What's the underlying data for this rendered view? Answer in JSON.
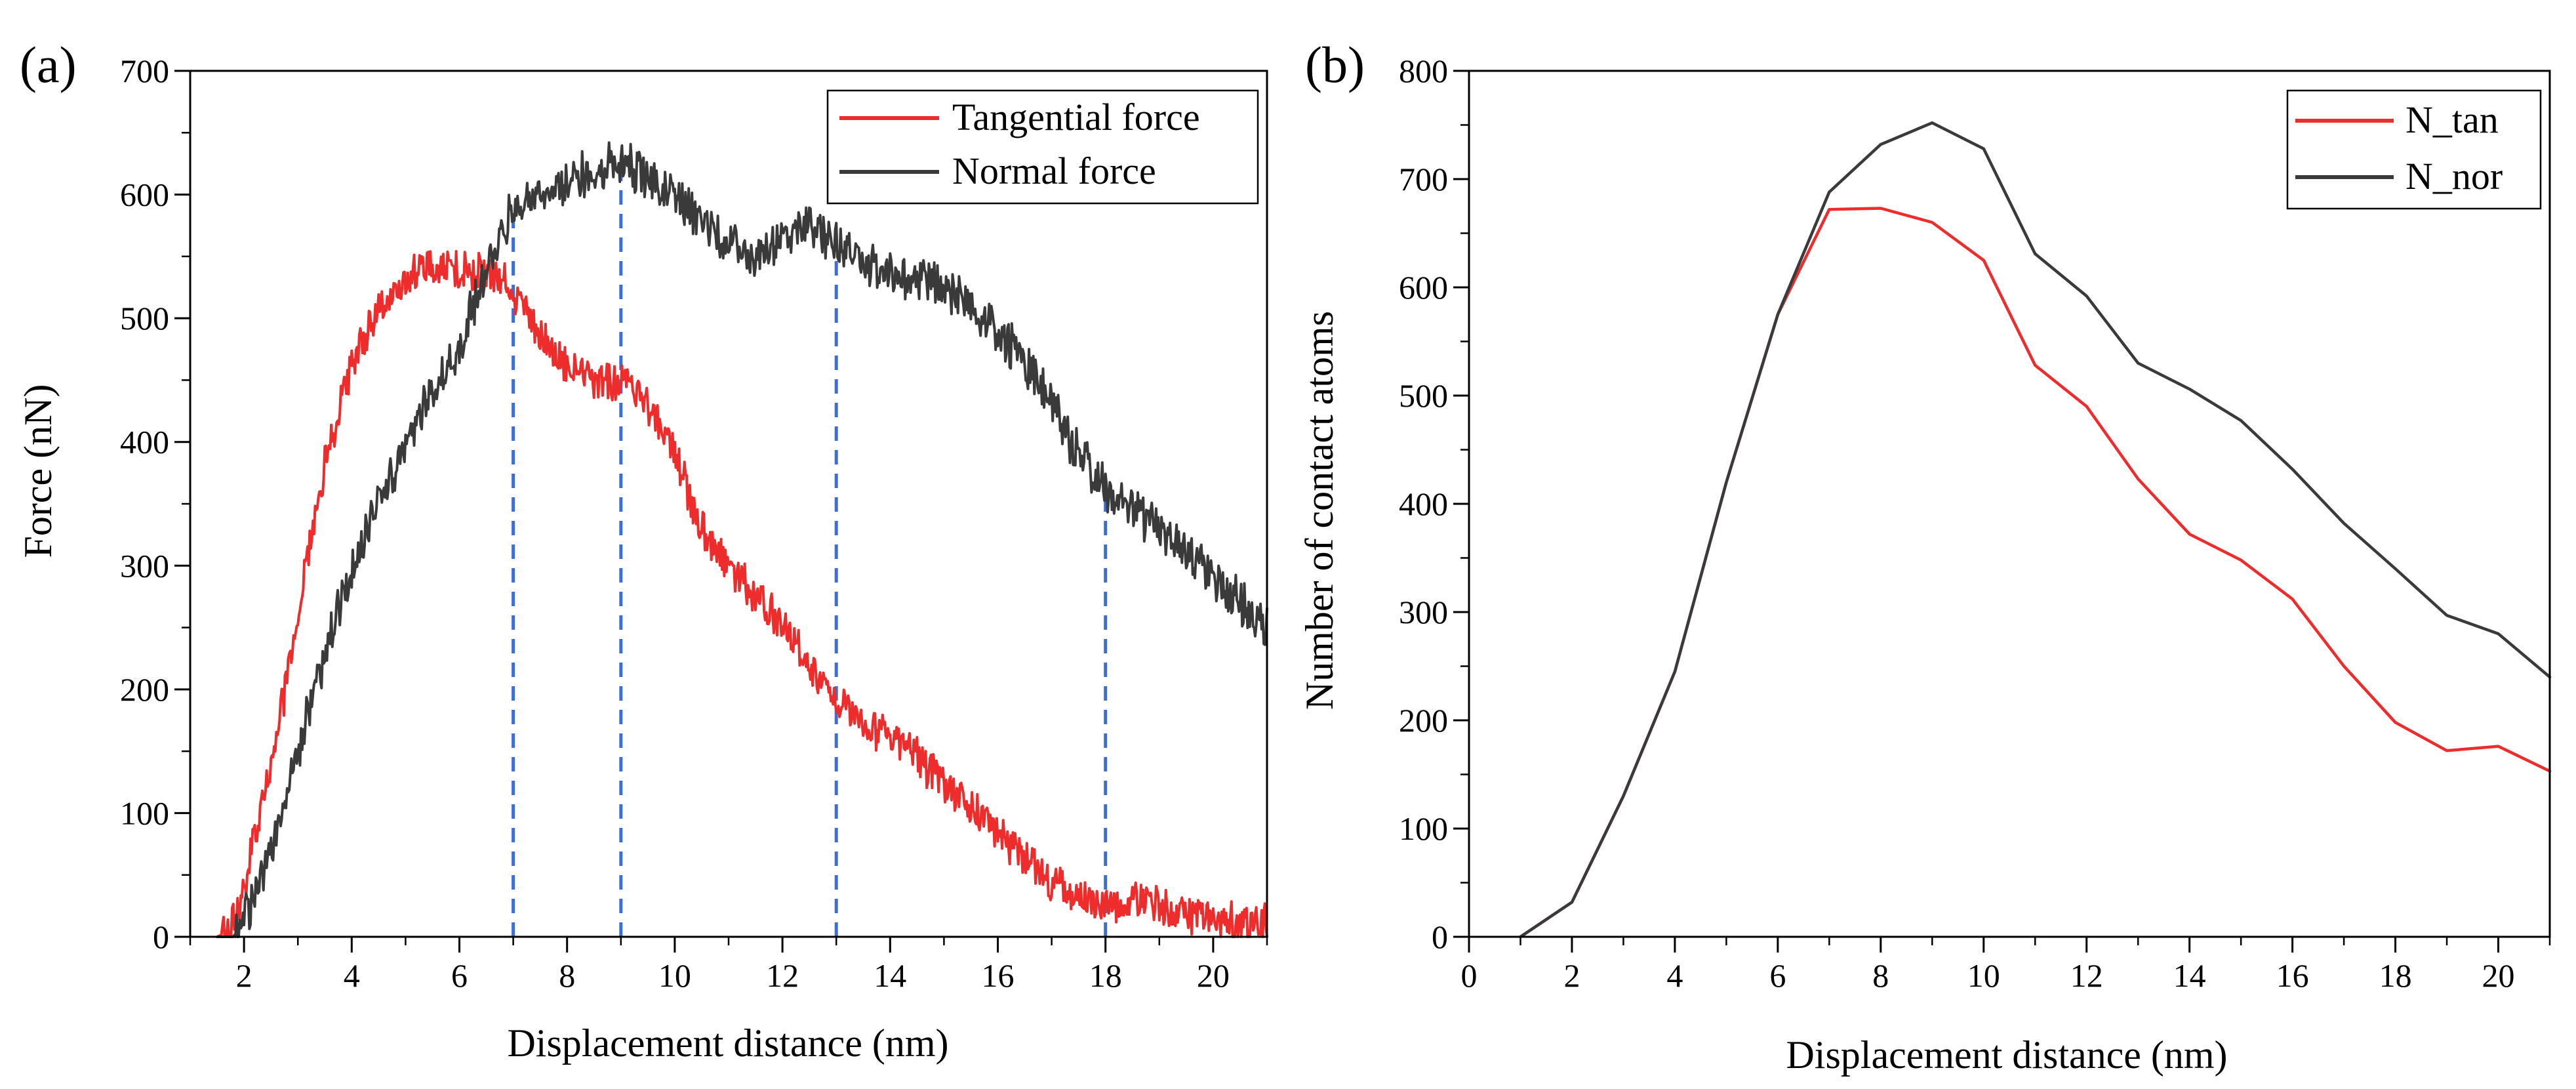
{
  "chart_data": [
    {
      "type": "line",
      "panel_label": "(a)",
      "xlabel": "Displacement distance (nm)",
      "ylabel": "Force (nN)",
      "xlim": [
        1,
        21
      ],
      "ylim": [
        0,
        700
      ],
      "xticks": [
        2,
        4,
        6,
        8,
        10,
        12,
        14,
        16,
        18,
        20
      ],
      "yticks": [
        0,
        100,
        200,
        300,
        400,
        500,
        600,
        700
      ],
      "legend_position": "top-right",
      "vlines": [
        7,
        9,
        13,
        18
      ],
      "series": [
        {
          "name": "Tangential force",
          "color": "#ee2c2c",
          "noise": 14,
          "x": [
            1.5,
            1.7,
            1.9,
            2.1,
            2.3,
            2.6,
            3.0,
            3.3,
            3.6,
            4.0,
            4.3,
            4.6,
            5.0,
            5.4,
            6.0,
            6.5,
            6.9,
            7.2,
            7.6,
            8.0,
            8.5,
            9.0,
            9.5,
            10.0,
            10.5,
            11.0,
            11.5,
            12.0,
            12.5,
            13.0,
            13.5,
            14.0,
            14.5,
            15.0,
            15.5,
            16.0,
            16.5,
            17.0,
            17.5,
            18.0,
            18.5,
            19.0,
            19.5,
            20.0,
            20.5,
            21.0
          ],
          "y": [
            0,
            4,
            20,
            60,
            100,
            160,
            260,
            340,
            400,
            460,
            490,
            510,
            530,
            540,
            540,
            535,
            530,
            510,
            480,
            460,
            450,
            450,
            430,
            390,
            330,
            300,
            275,
            255,
            220,
            190,
            175,
            160,
            145,
            125,
            105,
            85,
            65,
            45,
            32,
            25,
            28,
            25,
            20,
            15,
            12,
            10
          ]
        },
        {
          "name": "Normal force",
          "color": "#3a3a3a",
          "noise": 16,
          "x": [
            1.5,
            1.8,
            2.1,
            2.5,
            3.0,
            3.5,
            4.0,
            4.5,
            5.0,
            5.5,
            6.0,
            6.5,
            7.0,
            7.5,
            8.0,
            8.5,
            9.0,
            9.5,
            10.0,
            10.5,
            11.0,
            11.5,
            12.0,
            12.5,
            13.0,
            13.5,
            14.0,
            14.5,
            15.0,
            15.5,
            16.0,
            16.5,
            17.0,
            17.5,
            18.0,
            18.5,
            19.0,
            19.5,
            20.0,
            20.5,
            21.0
          ],
          "y": [
            0,
            0,
            20,
            70,
            150,
            230,
            300,
            350,
            400,
            440,
            480,
            540,
            590,
            600,
            610,
            620,
            625,
            615,
            600,
            580,
            560,
            550,
            565,
            575,
            560,
            545,
            540,
            530,
            525,
            510,
            490,
            465,
            430,
            390,
            360,
            345,
            330,
            310,
            290,
            270,
            245
          ]
        }
      ]
    },
    {
      "type": "line",
      "panel_label": "(b)",
      "xlabel": "Displacement distance (nm)",
      "ylabel": "Number of contact atoms",
      "xlim": [
        0,
        21
      ],
      "ylim": [
        0,
        800
      ],
      "xticks": [
        0,
        2,
        4,
        6,
        8,
        10,
        12,
        14,
        16,
        18,
        20
      ],
      "yticks": [
        0,
        100,
        200,
        300,
        400,
        500,
        600,
        700,
        800
      ],
      "legend_position": "top-right",
      "series": [
        {
          "name": "N_tan",
          "color": "#ee2c2c",
          "x": [
            1,
            2,
            3,
            4,
            5,
            6,
            7,
            8,
            9,
            10,
            11,
            12,
            13,
            14,
            15,
            16,
            17,
            18,
            19,
            20,
            21
          ],
          "y": [
            0,
            32,
            130,
            245,
            420,
            575,
            672,
            673,
            660,
            625,
            528,
            490,
            423,
            372,
            348,
            312,
            250,
            198,
            172,
            176,
            153
          ]
        },
        {
          "name": "N_nor",
          "color": "#3a3a3a",
          "x": [
            1,
            2,
            3,
            4,
            5,
            6,
            7,
            8,
            9,
            10,
            11,
            12,
            13,
            14,
            15,
            16,
            17,
            18,
            19,
            20,
            21
          ],
          "y": [
            0,
            32,
            130,
            245,
            420,
            575,
            688,
            732,
            752,
            728,
            631,
            592,
            530,
            506,
            477,
            432,
            382,
            340,
            297,
            280,
            240
          ]
        }
      ]
    }
  ]
}
